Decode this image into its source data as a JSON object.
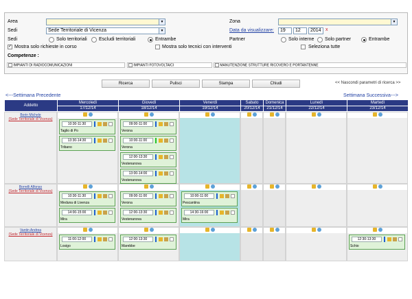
{
  "form": {
    "area_label": "Area",
    "area_value": "",
    "sedi_label": "Sedi",
    "sedi_value": "Sede Territoriale di Vicenza",
    "sedi2_label": "Sedi",
    "opt_solo_territoriali": "Solo territoriali",
    "opt_escludi_territoriali": "Escludi territoriali",
    "opt_entrambe": "Entrambe",
    "chk_mostra_richieste": "Mostra solo richieste in corso",
    "chk_mostra_tecnici": "Mostra solo tecnici con interventi",
    "zona_label": "Zona",
    "zona_value": "",
    "data_label": "Data da visualizzare:",
    "data_day": "19",
    "data_month": "12",
    "data_year": "2014",
    "data_clear": "x",
    "partner_label": "Partner",
    "opt_solo_interne": "Solo interne",
    "opt_solo_partner": "Solo partner",
    "opt_entrambe2": "Entrambe",
    "chk_seleziona_tutte": "Seleziona tutte",
    "competenze_label": "Competenze :",
    "comp1": "IMPIANTI DI RADIOCOMUNICAZIONI",
    "comp2": "IMPIANTI FOTOVOLTAICI",
    "comp3": "MANUTENZIONE STRUTTURE RICOVERO E PORTANTENNE"
  },
  "buttons": {
    "ricerca": "Ricerca",
    "pulisci": "Pulisci",
    "stampa": "Stampa",
    "chiudi": "Chiudi",
    "nascondi": "<< Nascondi parametri di ricerca >>"
  },
  "nav": {
    "prev": "<---Settimana Precedente",
    "next": "Settimana Successiva--->"
  },
  "grid": {
    "addetto_header": "Addetto",
    "days": [
      {
        "name": "Mercoledì",
        "date": "17/12/14"
      },
      {
        "name": "Giovedì",
        "date": "18/12/14"
      },
      {
        "name": "Venerdì",
        "date": "19/12/14"
      },
      {
        "name": "Sabato",
        "date": "20/12/14"
      },
      {
        "name": "Domenica",
        "date": "21/12/14"
      },
      {
        "name": "Lunedì",
        "date": "22/12/14"
      },
      {
        "name": "Martedì",
        "date": "23/12/14"
      }
    ],
    "rows": [
      {
        "name": "Borin Michele",
        "sede": "(Sede Territoriale di Vicenza)",
        "cards": {
          "mer": [
            {
              "time": "10:30-11:30",
              "place": "Taglio di Po"
            },
            {
              "time": "13:30-14:30",
              "place": "Tribano"
            }
          ],
          "gio": [
            {
              "time": "09:00-11:00",
              "place": "Verona"
            },
            {
              "time": "10:00-11:00",
              "place": "Verona"
            },
            {
              "time": "12:00-13:30",
              "place": "Vestenanova"
            },
            {
              "time": "13:00-14:00",
              "place": "Vestenanova"
            }
          ],
          "ven": []
        }
      },
      {
        "name": "Borrelli Alfonso",
        "sede": "(Sede Territoriale di Vicenza)",
        "cards": {
          "mer": [
            {
              "time": "10:30-11:30",
              "place": "Meduna di Livenza"
            },
            {
              "time": "14:00-15:00",
              "place": "Mira"
            }
          ],
          "gio": [
            {
              "time": "09:00-11:00",
              "place": "Verona"
            },
            {
              "time": "12:00-13:30",
              "place": "Vestenanova"
            }
          ],
          "ven": [
            {
              "time": "10:00-11:00",
              "place": "Pescantina"
            },
            {
              "time": "14:30-16:00",
              "place": "Mira"
            }
          ]
        }
      },
      {
        "name": "Vantin Andrea",
        "sede": "(Sede Territoriale di Vicenza)",
        "cards": {
          "mer": [
            {
              "time": "11:00-12:00",
              "place": "Losigo"
            }
          ],
          "gio": [
            {
              "time": "12:00-13:30",
              "place": "Marebbe"
            }
          ],
          "mar": [
            {
              "time": "12:30-13:30",
              "place": "Schio"
            }
          ]
        }
      }
    ]
  }
}
